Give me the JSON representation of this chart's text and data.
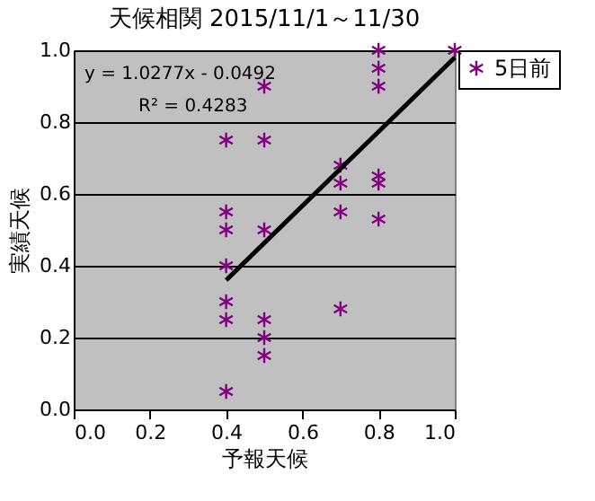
{
  "chart_data": {
    "type": "scatter",
    "title": "天候相関 2015/11/1～11/30",
    "xlabel": "予報天候",
    "ylabel": "実績天候",
    "series": [
      {
        "name": "5日前",
        "color": "#800080",
        "marker": "cross",
        "x": [
          0.4,
          0.4,
          0.4,
          0.4,
          0.4,
          0.4,
          0.4,
          0.5,
          0.5,
          0.5,
          0.5,
          0.5,
          0.5,
          0.7,
          0.7,
          0.7,
          0.7,
          0.8,
          0.8,
          0.8,
          0.8,
          0.8,
          0.8,
          1.0
        ],
        "values": [
          0.75,
          0.55,
          0.5,
          0.4,
          0.3,
          0.25,
          0.05,
          0.9,
          0.75,
          0.5,
          0.25,
          0.2,
          0.15,
          0.68,
          0.63,
          0.55,
          0.28,
          1.0,
          0.95,
          0.9,
          0.65,
          0.63,
          0.53,
          1.0
        ]
      },
      {
        "type": "line",
        "color": "#000000",
        "x": [
          0.4,
          1.0
        ],
        "values": [
          0.36,
          0.98
        ]
      }
    ],
    "annotations": [
      "y = 1.0277x - 0.0492",
      "R² = 0.4283"
    ],
    "xlim": [
      0,
      1
    ],
    "ylim": [
      0,
      1
    ],
    "xticks": [
      {
        "value": 0,
        "label": "0.0"
      },
      {
        "value": 0.2,
        "label": "0.2"
      },
      {
        "value": 0.4,
        "label": "0.4"
      },
      {
        "value": 0.6,
        "label": "0.6"
      },
      {
        "value": 0.8,
        "label": "0.8"
      },
      {
        "value": 1,
        "label": "1.0"
      }
    ],
    "yticks": [
      {
        "value": 0,
        "label": "0.0"
      },
      {
        "value": 0.2,
        "label": "0.2"
      },
      {
        "value": 0.4,
        "label": "0.4"
      },
      {
        "value": 0.6,
        "label": "0.6"
      },
      {
        "value": 0.8,
        "label": "0.8"
      },
      {
        "value": 1,
        "label": "1.0"
      }
    ],
    "grid": "y",
    "legend": "right"
  }
}
